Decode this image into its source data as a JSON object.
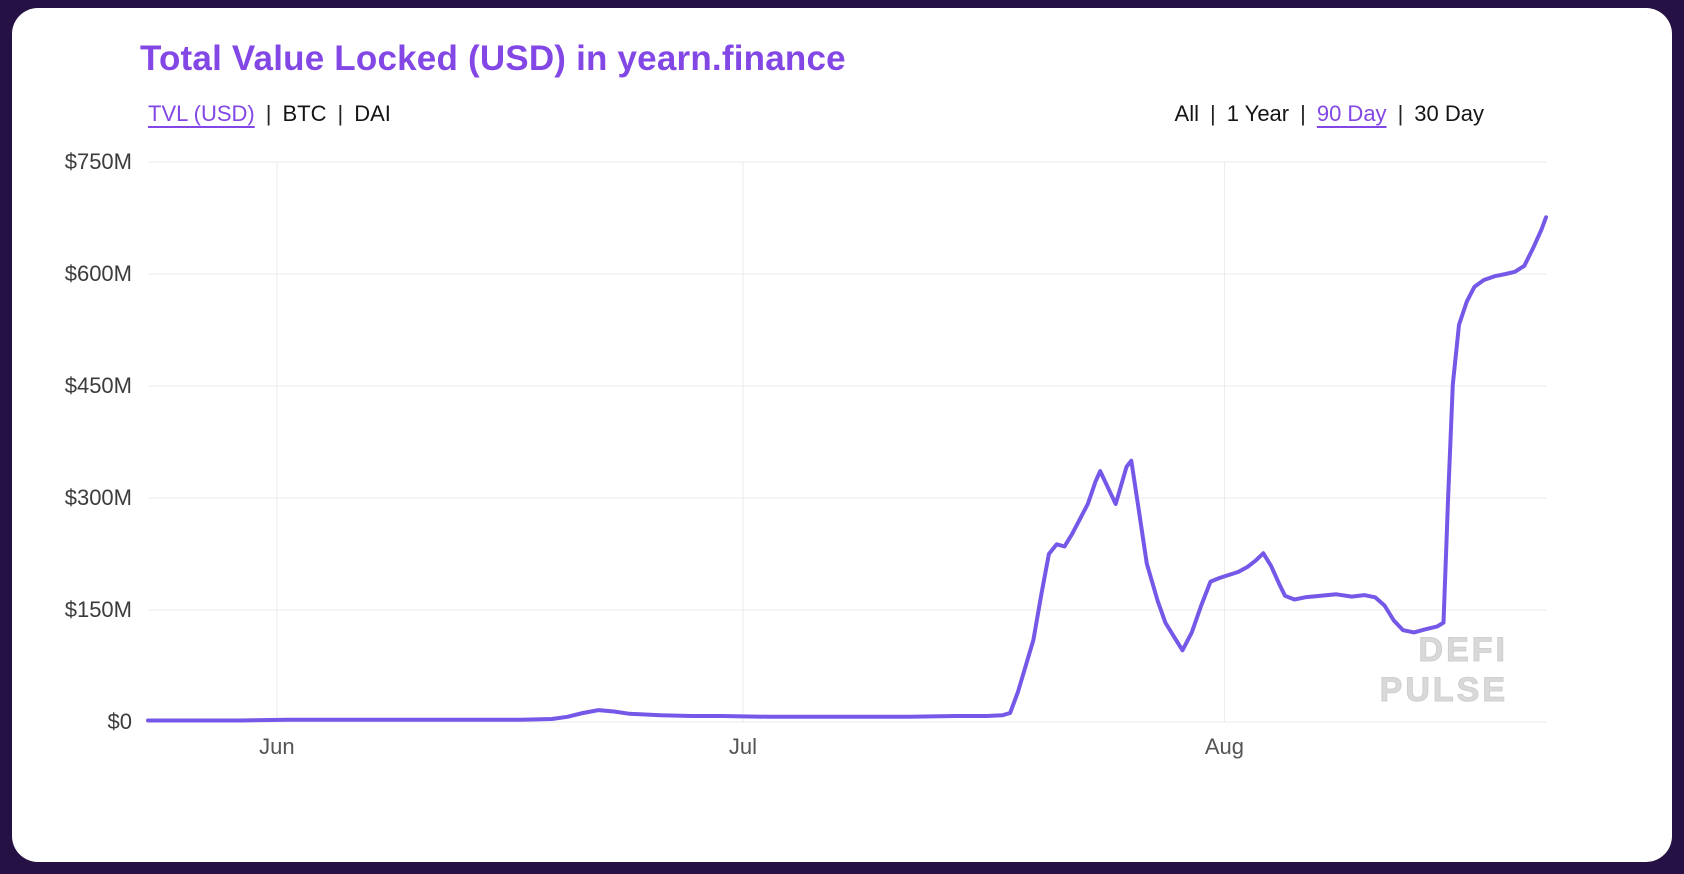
{
  "header": {
    "title": "Total Value Locked (USD) in yearn.finance"
  },
  "controls": {
    "separator": "|",
    "metrics": [
      {
        "label": "TVL (USD)",
        "active": true
      },
      {
        "label": "BTC",
        "active": false
      },
      {
        "label": "DAI",
        "active": false
      }
    ],
    "ranges": [
      {
        "label": "All",
        "active": false
      },
      {
        "label": "1 Year",
        "active": false
      },
      {
        "label": "90 Day",
        "active": true
      },
      {
        "label": "30 Day",
        "active": false
      }
    ]
  },
  "watermark": {
    "line1": "DEFI",
    "line2": "PULSE"
  },
  "colors": {
    "accent": "#8247e5",
    "line": "#7558e8",
    "frame_background": "#251143",
    "watermark": "#d9d9d9",
    "grid": "#ebebeb"
  },
  "chart_data": {
    "type": "line",
    "title": "Total Value Locked (USD) in yearn.finance",
    "series_name": "TVL (USD)",
    "unit": "USD millions",
    "x_unit": "days (90 Day view)",
    "x_range": [
      0,
      90
    ],
    "ylim": [
      0,
      750
    ],
    "grid": true,
    "legend": "none",
    "line_color": "#7558e8",
    "yticks": [
      {
        "value": 0,
        "label": "$0"
      },
      {
        "value": 150,
        "label": "$150M"
      },
      {
        "value": 300,
        "label": "$300M"
      },
      {
        "value": 450,
        "label": "$450M"
      },
      {
        "value": 600,
        "label": "$600M"
      },
      {
        "value": 750,
        "label": "$750M"
      }
    ],
    "xticks": [
      {
        "day": 8.3,
        "label": "Jun"
      },
      {
        "day": 38.3,
        "label": "Jul"
      },
      {
        "day": 69.3,
        "label": "Aug"
      }
    ],
    "points": [
      [
        0,
        2
      ],
      [
        3,
        2
      ],
      [
        6,
        2
      ],
      [
        9,
        3
      ],
      [
        12,
        3
      ],
      [
        15,
        3
      ],
      [
        18,
        3
      ],
      [
        21,
        3
      ],
      [
        24,
        3
      ],
      [
        26,
        4
      ],
      [
        27,
        7
      ],
      [
        28,
        12
      ],
      [
        29,
        16
      ],
      [
        30,
        14
      ],
      [
        31,
        11
      ],
      [
        32,
        10
      ],
      [
        33,
        9
      ],
      [
        35,
        8
      ],
      [
        37,
        8
      ],
      [
        40,
        7
      ],
      [
        43,
        7
      ],
      [
        46,
        7
      ],
      [
        49,
        7
      ],
      [
        52,
        8
      ],
      [
        54,
        8
      ],
      [
        55,
        9
      ],
      [
        55.5,
        12
      ],
      [
        56,
        40
      ],
      [
        57,
        110
      ],
      [
        57.5,
        170
      ],
      [
        58,
        225
      ],
      [
        58.5,
        238
      ],
      [
        59,
        235
      ],
      [
        59.5,
        252
      ],
      [
        60,
        272
      ],
      [
        60.5,
        292
      ],
      [
        61,
        322
      ],
      [
        61.3,
        336
      ],
      [
        62,
        305
      ],
      [
        62.3,
        292
      ],
      [
        63,
        342
      ],
      [
        63.3,
        350
      ],
      [
        63.8,
        282
      ],
      [
        64.3,
        212
      ],
      [
        65,
        162
      ],
      [
        65.5,
        133
      ],
      [
        66,
        116
      ],
      [
        66.6,
        96
      ],
      [
        67.2,
        120
      ],
      [
        67.8,
        156
      ],
      [
        68.4,
        188
      ],
      [
        69,
        193
      ],
      [
        69.6,
        197
      ],
      [
        70.2,
        201
      ],
      [
        70.8,
        208
      ],
      [
        71.3,
        216
      ],
      [
        71.8,
        226
      ],
      [
        72.3,
        209
      ],
      [
        72.8,
        186
      ],
      [
        73.2,
        169
      ],
      [
        73.8,
        164
      ],
      [
        74.5,
        167
      ],
      [
        75.5,
        169
      ],
      [
        76.5,
        171
      ],
      [
        77.5,
        168
      ],
      [
        78.3,
        170
      ],
      [
        79,
        167
      ],
      [
        79.6,
        156
      ],
      [
        80.2,
        136
      ],
      [
        80.8,
        123
      ],
      [
        81.5,
        120
      ],
      [
        82.2,
        124
      ],
      [
        83,
        128
      ],
      [
        83.4,
        133
      ],
      [
        83.7,
        300
      ],
      [
        84,
        452
      ],
      [
        84.4,
        532
      ],
      [
        84.9,
        563
      ],
      [
        85.4,
        583
      ],
      [
        86,
        592
      ],
      [
        86.7,
        597
      ],
      [
        87.4,
        600
      ],
      [
        88,
        603
      ],
      [
        88.6,
        611
      ],
      [
        89.2,
        636
      ],
      [
        89.7,
        659
      ],
      [
        90,
        676
      ]
    ]
  }
}
